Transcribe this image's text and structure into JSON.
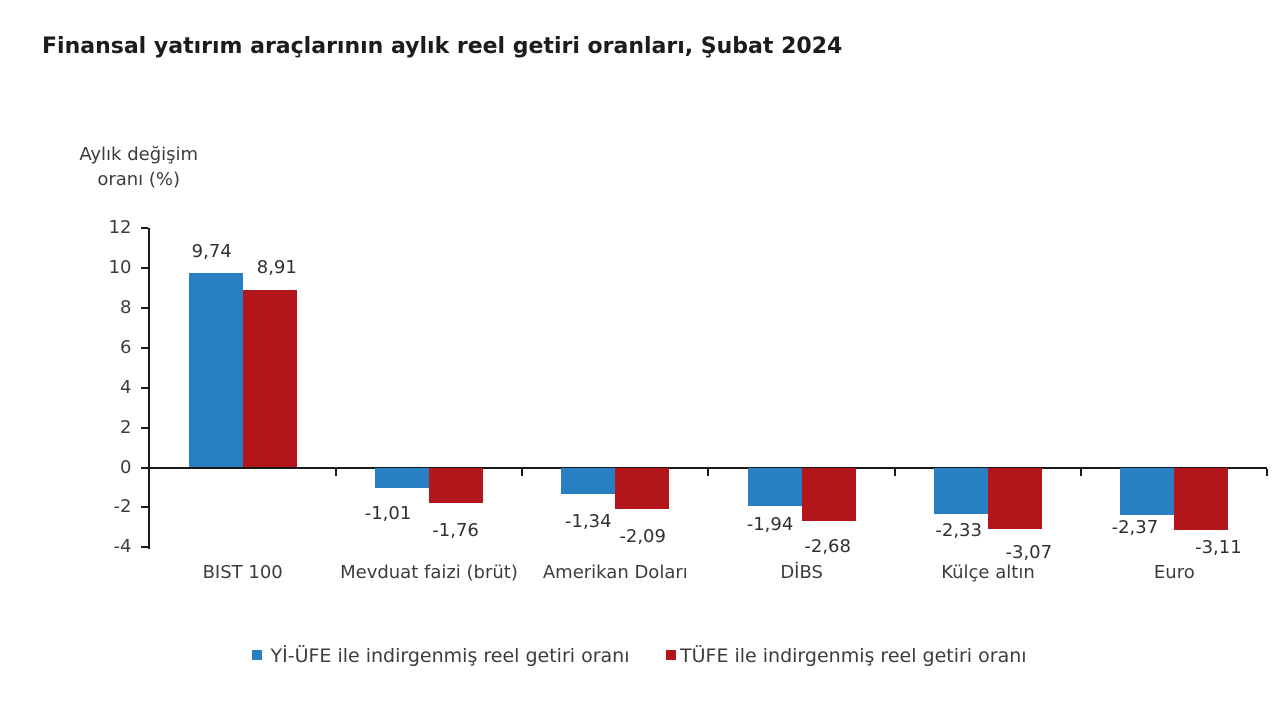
{
  "title": "Finansal yatırım araçlarının aylık reel getiri oranları, Şubat 2024",
  "chart_data": {
    "type": "bar",
    "title": "Finansal yatırım araçlarının aylık reel getiri oranları, Şubat 2024",
    "y_axis_title_lines": [
      "Aylık değişim",
      "oranı (%)"
    ],
    "categories": [
      "BIST 100",
      "Mevduat faizi (brüt)",
      "Amerikan Doları",
      "DİBS",
      "Külçe altın",
      "Euro"
    ],
    "series": [
      {
        "name": "Yİ-ÜFE ile indirgenmiş reel getiri oranı",
        "color": "#2880c3",
        "values": [
          9.74,
          -1.01,
          -1.34,
          -1.94,
          -2.33,
          -2.37
        ],
        "labels": [
          "9,74",
          "-1,01",
          "-1,34",
          "-1,94",
          "-2,33",
          "-2,37"
        ]
      },
      {
        "name": "TÜFE ile indirgenmiş reel getiri oranı",
        "color": "#b2161b",
        "values": [
          8.91,
          -1.76,
          -2.09,
          -2.68,
          -3.07,
          -3.11
        ],
        "labels": [
          "8,91",
          "-1,76",
          "-2,09",
          "-2,68",
          "-3,07",
          "-3,11"
        ]
      }
    ],
    "y_ticks": [
      12,
      10,
      8,
      6,
      4,
      2,
      0,
      -2,
      -4
    ],
    "ylim": [
      -4,
      12
    ],
    "xlabel": "",
    "ylabel": "Aylık değişim oranı (%)",
    "grid": false,
    "legend_position": "bottom"
  },
  "colors": {
    "background": "#ffffff",
    "axis": "#1a1a1a",
    "text": "#3d3d3d",
    "title": "#1f1f1f"
  }
}
